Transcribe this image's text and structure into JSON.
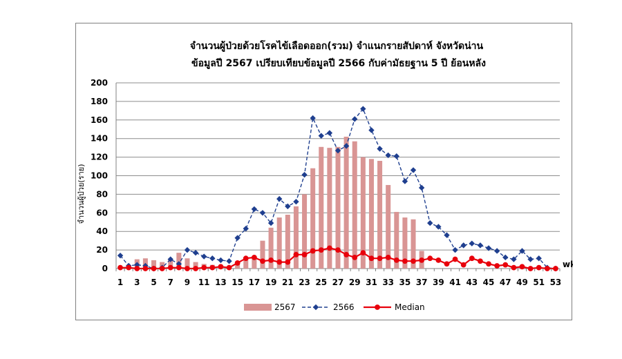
{
  "chart_data": {
    "type": "bar",
    "title": "จำนวนผู้ป่วยด้วยโรคไข้เลือดออก(รวม) จำแนกรายสัปดาห์ จังหวัดน่าน",
    "subtitle": "ข้อมูลปี 2567 เปรียบเทียบข้อมูลปี 2566 กับค่ามัธยฐาน 5 ปี ย้อนหลัง",
    "ylabel": "จำนวนผู้ป่วย(ราย)",
    "xlabel": "wk",
    "ylim": [
      0,
      200
    ],
    "yticks": [
      0,
      20,
      40,
      60,
      80,
      100,
      120,
      140,
      160,
      180,
      200
    ],
    "x": [
      1,
      2,
      3,
      4,
      5,
      6,
      7,
      8,
      9,
      10,
      11,
      12,
      13,
      14,
      15,
      16,
      17,
      18,
      19,
      20,
      21,
      22,
      23,
      24,
      25,
      26,
      27,
      28,
      29,
      30,
      31,
      32,
      33,
      34,
      35,
      36,
      37,
      38,
      39,
      40,
      41,
      42,
      43,
      44,
      45,
      46,
      47,
      48,
      49,
      50,
      51,
      52,
      53
    ],
    "xtick_labels": [
      "1",
      "3",
      "5",
      "7",
      "9",
      "11",
      "13",
      "15",
      "17",
      "19",
      "21",
      "23",
      "25",
      "27",
      "29",
      "31",
      "33",
      "35",
      "37",
      "39",
      "41",
      "43",
      "45",
      "47",
      "49",
      "51",
      "53"
    ],
    "legend_position": "bottom",
    "grid": true,
    "series": [
      {
        "name": "2567",
        "kind": "bar",
        "color": "#d99594",
        "values": [
          1,
          3,
          10,
          11,
          9,
          7,
          10,
          17,
          11,
          7,
          5,
          4,
          3,
          1,
          6,
          12,
          11,
          30,
          44,
          55,
          58,
          67,
          80,
          108,
          131,
          130,
          131,
          142,
          137,
          120,
          118,
          116,
          90,
          61,
          55,
          53,
          19,
          null,
          null,
          null,
          null,
          null,
          null,
          null,
          null,
          null,
          null,
          null,
          null,
          null,
          null,
          null,
          null
        ]
      },
      {
        "name": "2566",
        "kind": "line",
        "style": "dashed",
        "marker": "diamond",
        "color": "#1f3f8f",
        "values": [
          14,
          3,
          4,
          3,
          0,
          1,
          10,
          5,
          20,
          17,
          13,
          11,
          9,
          8,
          33,
          43,
          64,
          60,
          49,
          75,
          67,
          72,
          101,
          162,
          143,
          146,
          127,
          132,
          161,
          172,
          149,
          129,
          122,
          121,
          94,
          106,
          87,
          49,
          45,
          36,
          20,
          25,
          27,
          25,
          22,
          19,
          12,
          10,
          19,
          10,
          11,
          1,
          0
        ]
      },
      {
        "name": "Median",
        "kind": "line",
        "style": "solid",
        "marker": "circle",
        "color": "#e8000b",
        "values": [
          1,
          1,
          0,
          0,
          0,
          0,
          1,
          1,
          0,
          0,
          1,
          1,
          2,
          1,
          6,
          11,
          12,
          8,
          9,
          7,
          7,
          15,
          15,
          19,
          20,
          22,
          20,
          15,
          12,
          17,
          11,
          11,
          12,
          9,
          8,
          8,
          9,
          11,
          9,
          5,
          10,
          4,
          11,
          8,
          5,
          3,
          4,
          1,
          2,
          0,
          1,
          0,
          0
        ]
      }
    ]
  }
}
